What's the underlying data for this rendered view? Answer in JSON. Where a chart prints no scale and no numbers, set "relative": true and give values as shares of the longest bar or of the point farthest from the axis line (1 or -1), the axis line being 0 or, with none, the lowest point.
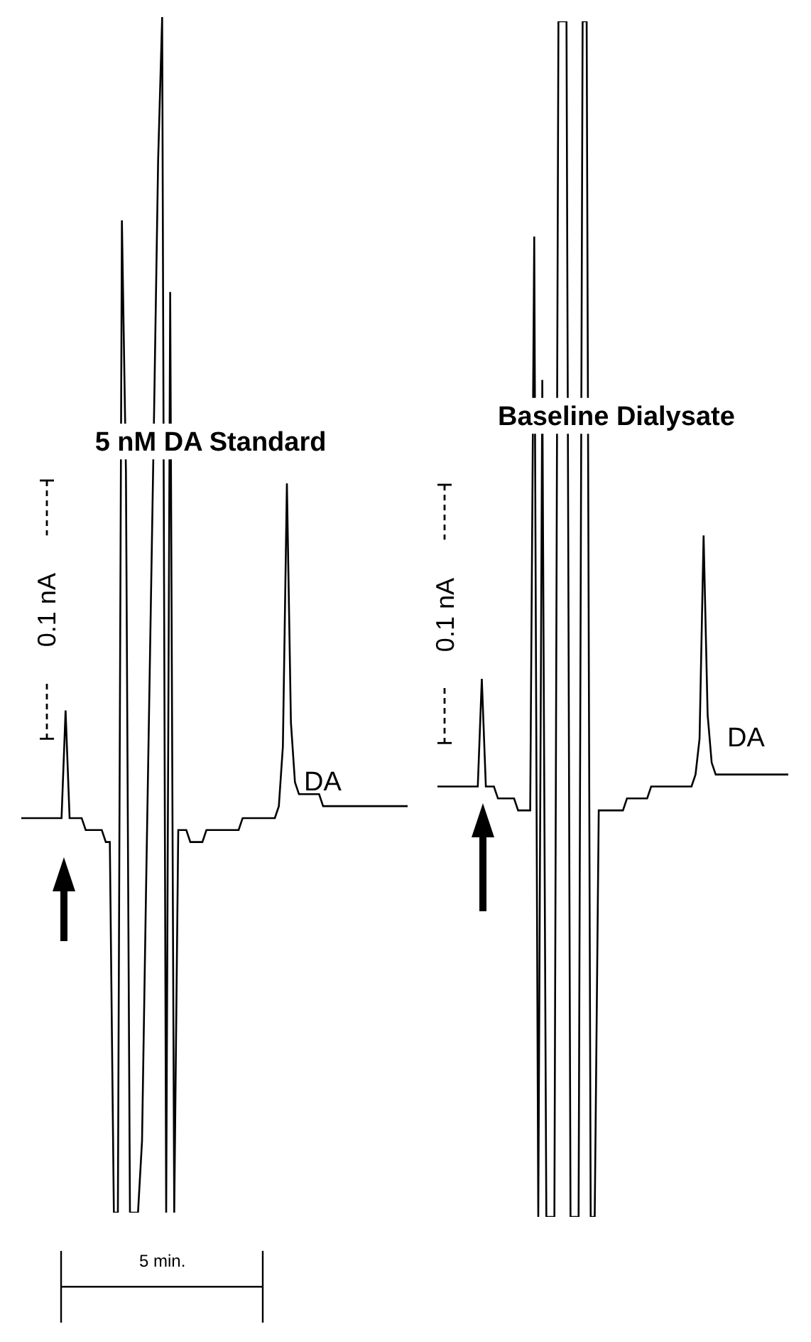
{
  "chart_data": [
    {
      "type": "line",
      "title": "5 nM DA Standard",
      "relative": true,
      "color": "#000000",
      "categories": [
        null,
        null,
        null,
        null,
        null,
        null,
        null,
        null,
        null,
        null,
        null,
        null,
        null,
        null,
        null,
        null,
        null,
        null,
        null,
        null,
        null,
        null,
        null,
        null,
        null,
        null,
        null,
        null,
        null,
        null,
        null,
        null,
        null,
        null,
        null,
        null,
        null,
        null,
        null,
        null,
        null,
        null,
        null,
        null,
        null,
        null,
        null,
        null,
        null,
        null,
        null,
        null,
        null,
        null,
        null,
        null,
        null,
        null,
        null,
        null,
        null,
        null,
        null,
        null,
        null,
        null,
        null,
        null,
        null,
        null,
        null,
        null,
        null,
        null,
        null,
        null,
        null,
        null,
        null,
        null,
        null,
        null,
        null,
        null,
        null,
        null,
        null,
        null,
        null,
        null,
        null,
        null,
        null,
        null,
        null,
        null,
        null
      ],
      "values": [
        0.33,
        0.33,
        0.33,
        0.33,
        0.33,
        0.33,
        0.33,
        0.33,
        0.33,
        0.33,
        0.33,
        0.42,
        0.33,
        0.33,
        0.33,
        0.33,
        0.32,
        0.32,
        0.32,
        0.32,
        0.32,
        0.31,
        0.31,
        0,
        0,
        0.83,
        0.62,
        0,
        0,
        0,
        0.06,
        0.27,
        0.47,
        0.67,
        0.88,
        1,
        0,
        0.77,
        0,
        0.32,
        0.32,
        0.32,
        0.31,
        0.31,
        0.31,
        0.31,
        0.32,
        0.32,
        0.32,
        0.32,
        0.32,
        0.32,
        0.32,
        0.32,
        0.32,
        0.33,
        0.33,
        0.33,
        0.33,
        0.33,
        0.33,
        0.33,
        0.33,
        0.33,
        0.34,
        0.39,
        0.61,
        0.41,
        0.36,
        0.35,
        0.35,
        0.35,
        0.35,
        0.35,
        0.35,
        0.34,
        0.34,
        0.34,
        0.34,
        0.34,
        0.34,
        0.34,
        0.34,
        0.34,
        0.34,
        0.34,
        0.34,
        0.34,
        0.34,
        0.34,
        0.34,
        0.34,
        0.34,
        0.34,
        0.34,
        0.34,
        0.34
      ],
      "annotations": [
        "0.1 nA",
        "5 min.",
        "DA"
      ]
    },
    {
      "type": "line",
      "title": "Baseline Dialysate",
      "relative": true,
      "color": "#000000",
      "categories": [
        null,
        null,
        null,
        null,
        null,
        null,
        null,
        null,
        null,
        null,
        null,
        null,
        null,
        null,
        null,
        null,
        null,
        null,
        null,
        null,
        null,
        null,
        null,
        null,
        null,
        null,
        null,
        null,
        null,
        null,
        null,
        null,
        null,
        null,
        null,
        null,
        null,
        null,
        null,
        null,
        null,
        null,
        null,
        null,
        null,
        null,
        null,
        null,
        null,
        null,
        null,
        null,
        null,
        null,
        null,
        null,
        null,
        null,
        null,
        null,
        null,
        null,
        null,
        null,
        null,
        null,
        null,
        null,
        null,
        null,
        null,
        null,
        null,
        null,
        null,
        null,
        null,
        null,
        null,
        null,
        null,
        null,
        null,
        null,
        null,
        null,
        null,
        null
      ],
      "values": [
        0.36,
        0.36,
        0.36,
        0.36,
        0.36,
        0.36,
        0.36,
        0.36,
        0.36,
        0.36,
        0.36,
        0.45,
        0.36,
        0.36,
        0.36,
        0.35,
        0.35,
        0.35,
        0.35,
        0.35,
        0.34,
        0.34,
        0.34,
        0.34,
        0.82,
        0,
        0.7,
        0,
        0,
        0,
        1,
        1,
        1,
        0,
        0,
        0,
        1,
        1,
        0,
        0,
        0.34,
        0.34,
        0.34,
        0.34,
        0.34,
        0.34,
        0.34,
        0.35,
        0.35,
        0.35,
        0.35,
        0.35,
        0.35,
        0.36,
        0.36,
        0.36,
        0.36,
        0.36,
        0.36,
        0.36,
        0.36,
        0.36,
        0.36,
        0.36,
        0.37,
        0.4,
        0.57,
        0.42,
        0.38,
        0.37,
        0.37,
        0.37,
        0.37,
        0.37,
        0.37,
        0.37,
        0.37,
        0.37,
        0.37,
        0.37,
        0.37,
        0.37,
        0.37,
        0.37,
        0.37,
        0.37,
        0.37,
        0.37
      ],
      "annotations": [
        "0.1 nA",
        "DA"
      ]
    }
  ]
}
